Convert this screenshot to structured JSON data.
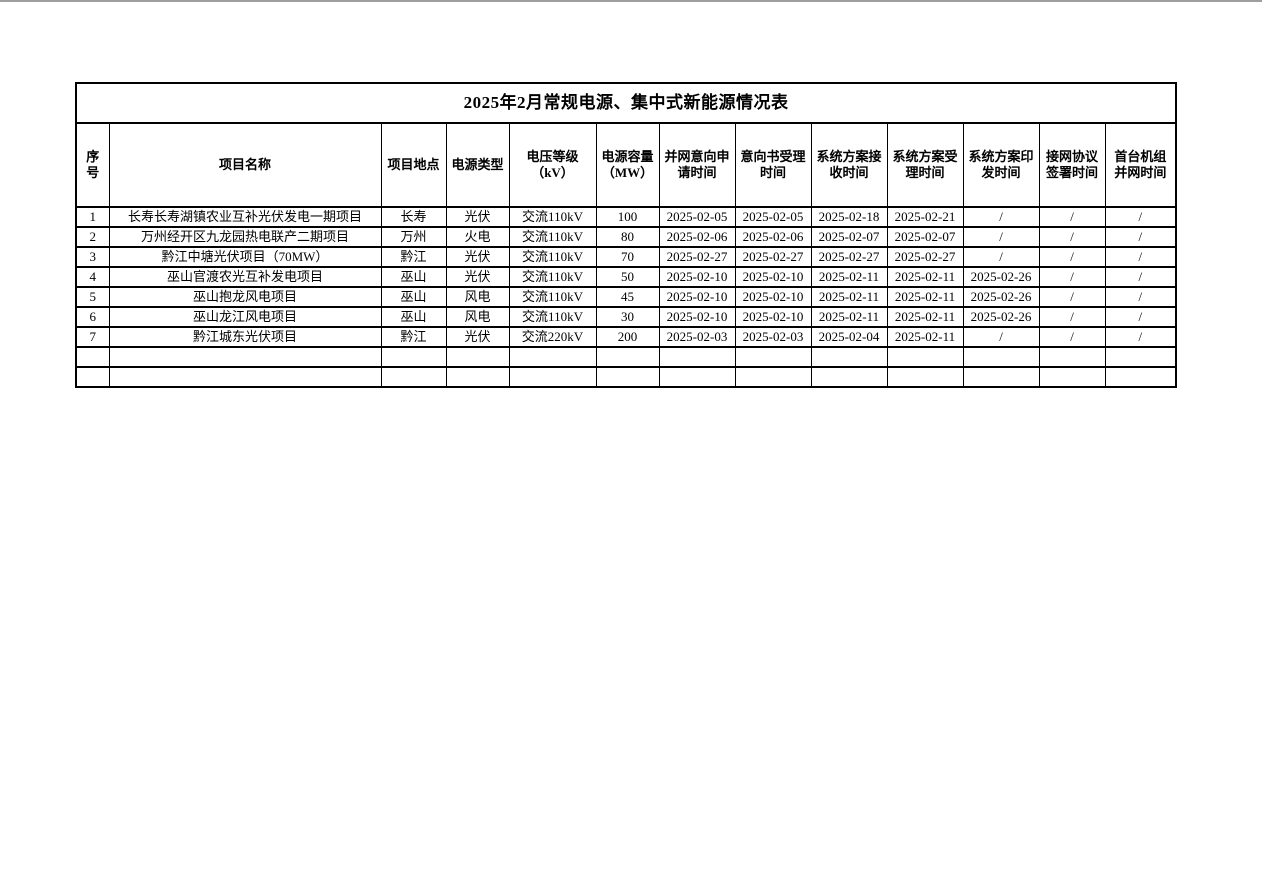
{
  "page": {
    "background": "#ffffff",
    "top_edge_color": "#9e9e9e",
    "border_color": "#000000"
  },
  "table": {
    "title": "2025年2月常规电源、集中式新能源情况表",
    "columns": [
      {
        "key": "seq",
        "label": "序号"
      },
      {
        "key": "project_name",
        "label": "项目名称"
      },
      {
        "key": "location",
        "label": "项目地点"
      },
      {
        "key": "power_type",
        "label": "电源类型"
      },
      {
        "key": "voltage_level",
        "label": "电压等级（kV）"
      },
      {
        "key": "capacity",
        "label": "电源容量（MW）"
      },
      {
        "key": "grid_intent_apply_time",
        "label": "并网意向申请时间"
      },
      {
        "key": "intent_accept_time",
        "label": "意向书受理时间"
      },
      {
        "key": "plan_receive_time",
        "label": "系统方案接收时间"
      },
      {
        "key": "plan_accept_time",
        "label": "系统方案受理时间"
      },
      {
        "key": "plan_issue_time",
        "label": "系统方案印发时间"
      },
      {
        "key": "agreement_sign_time",
        "label": "接网协议签署时间"
      },
      {
        "key": "first_unit_grid_time",
        "label": "首台机组并网时间"
      }
    ],
    "rows": [
      [
        "1",
        "长寿长寿湖镇农业互补光伏发电一期项目",
        "长寿",
        "光伏",
        "交流110kV",
        "100",
        "2025-02-05",
        "2025-02-05",
        "2025-02-18",
        "2025-02-21",
        "/",
        "/",
        "/"
      ],
      [
        "2",
        "万州经开区九龙园热电联产二期项目",
        "万州",
        "火电",
        "交流110kV",
        "80",
        "2025-02-06",
        "2025-02-06",
        "2025-02-07",
        "2025-02-07",
        "/",
        "/",
        "/"
      ],
      [
        "3",
        "黔江中塘光伏项目（70MW）",
        "黔江",
        "光伏",
        "交流110kV",
        "70",
        "2025-02-27",
        "2025-02-27",
        "2025-02-27",
        "2025-02-27",
        "/",
        "/",
        "/"
      ],
      [
        "4",
        "巫山官渡农光互补发电项目",
        "巫山",
        "光伏",
        "交流110kV",
        "50",
        "2025-02-10",
        "2025-02-10",
        "2025-02-11",
        "2025-02-11",
        "2025-02-26",
        "/",
        "/"
      ],
      [
        "5",
        "巫山抱龙风电项目",
        "巫山",
        "风电",
        "交流110kV",
        "45",
        "2025-02-10",
        "2025-02-10",
        "2025-02-11",
        "2025-02-11",
        "2025-02-26",
        "/",
        "/"
      ],
      [
        "6",
        "巫山龙江风电项目",
        "巫山",
        "风电",
        "交流110kV",
        "30",
        "2025-02-10",
        "2025-02-10",
        "2025-02-11",
        "2025-02-11",
        "2025-02-26",
        "/",
        "/"
      ],
      [
        "7",
        "黔江城东光伏项目",
        "黔江",
        "光伏",
        "交流220kV",
        "200",
        "2025-02-03",
        "2025-02-03",
        "2025-02-04",
        "2025-02-11",
        "/",
        "/",
        "/"
      ]
    ],
    "empty_rows": 2
  }
}
